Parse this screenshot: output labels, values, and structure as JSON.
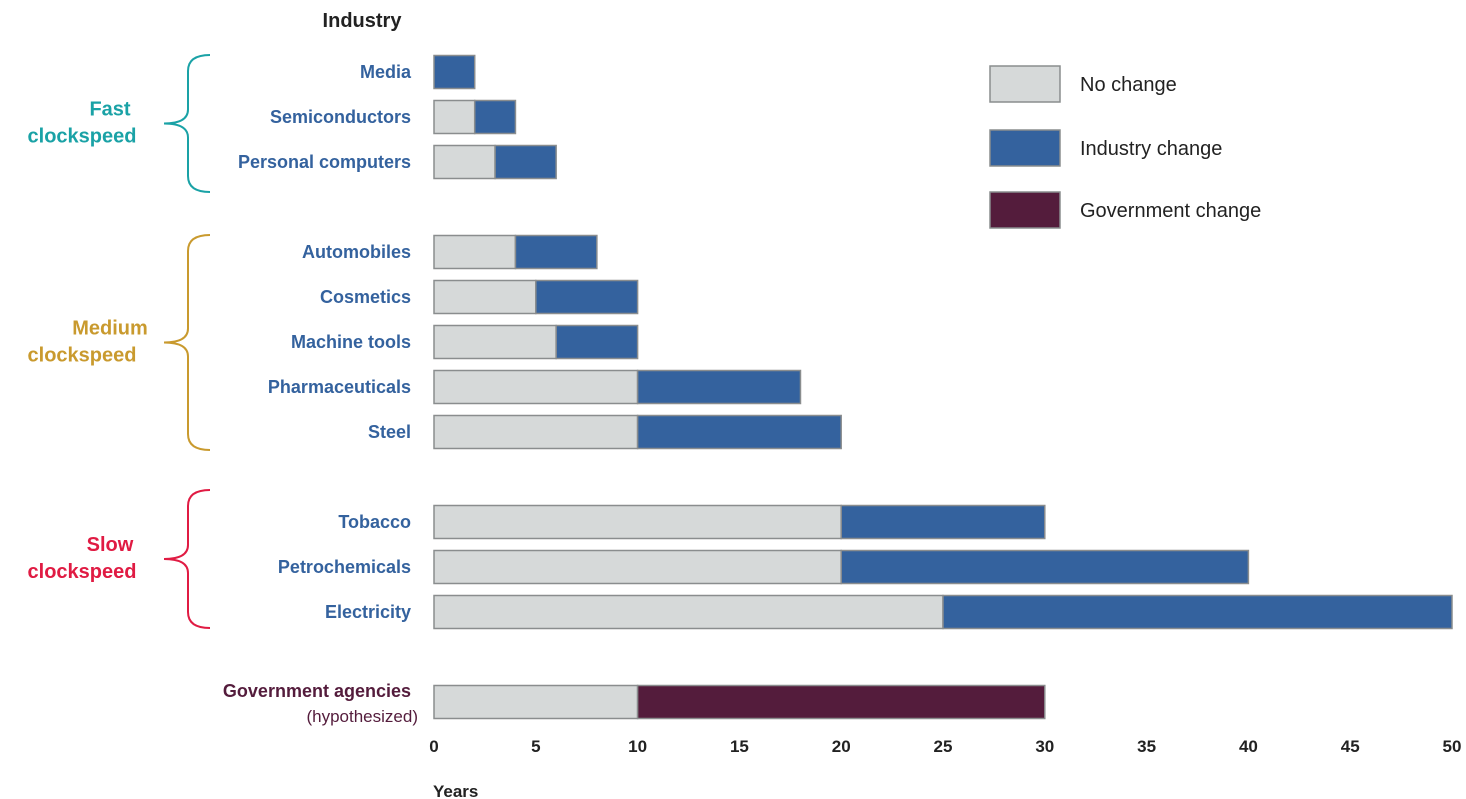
{
  "chart_data": {
    "type": "bar",
    "stacked": true,
    "orientation": "horizontal",
    "y_header": "Industry",
    "xlabel": "Years",
    "xlim": [
      0,
      50
    ],
    "x_ticks": [
      0,
      5,
      10,
      15,
      20,
      25,
      30,
      35,
      40,
      45,
      50
    ],
    "grid": false,
    "legend_position": "top-right",
    "series": [
      {
        "name": "No change",
        "color": "#d6d9d9"
      },
      {
        "name": "Industry change",
        "color": "#34629e"
      },
      {
        "name": "Government change",
        "color": "#541c3c"
      }
    ],
    "groups": [
      {
        "label_line1": "Fast",
        "label_line2": "clockspeed",
        "color": "#1aa2a6"
      },
      {
        "label_line1": "Medium",
        "label_line2": "clockspeed",
        "color": "#c99a2e"
      },
      {
        "label_line1": "Slow",
        "label_line2": "clockspeed",
        "color": "#e01b43"
      }
    ],
    "categories": [
      {
        "label": "Media",
        "group": 0,
        "no_change": 0,
        "change": 2,
        "change_series": 1,
        "label_color": "#34629e"
      },
      {
        "label": "Semiconductors",
        "group": 0,
        "no_change": 2,
        "change": 2,
        "change_series": 1,
        "label_color": "#34629e"
      },
      {
        "label": "Personal computers",
        "group": 0,
        "no_change": 3,
        "change": 3,
        "change_series": 1,
        "label_color": "#34629e"
      },
      {
        "label": "Automobiles",
        "group": 1,
        "no_change": 4,
        "change": 4,
        "change_series": 1,
        "label_color": "#34629e"
      },
      {
        "label": "Cosmetics",
        "group": 1,
        "no_change": 5,
        "change": 5,
        "change_series": 1,
        "label_color": "#34629e"
      },
      {
        "label": "Machine tools",
        "group": 1,
        "no_change": 6,
        "change": 4,
        "change_series": 1,
        "label_color": "#34629e"
      },
      {
        "label": "Pharmaceuticals",
        "group": 1,
        "no_change": 10,
        "change": 8,
        "change_series": 1,
        "label_color": "#34629e"
      },
      {
        "label": "Steel",
        "group": 1,
        "no_change": 10,
        "change": 10,
        "change_series": 1,
        "label_color": "#34629e"
      },
      {
        "label": "Tobacco",
        "group": 2,
        "no_change": 20,
        "change": 10,
        "change_series": 1,
        "label_color": "#34629e"
      },
      {
        "label": "Petrochemicals",
        "group": 2,
        "no_change": 20,
        "change": 20,
        "change_series": 1,
        "label_color": "#34629e"
      },
      {
        "label": "Electricity",
        "group": 2,
        "no_change": 25,
        "change": 25,
        "change_series": 1,
        "label_color": "#34629e"
      },
      {
        "label": "Government agencies",
        "sublabel": "(hypothesized)",
        "group": null,
        "no_change": 10,
        "change": 20,
        "change_series": 2,
        "label_color": "#541c3c"
      }
    ]
  }
}
